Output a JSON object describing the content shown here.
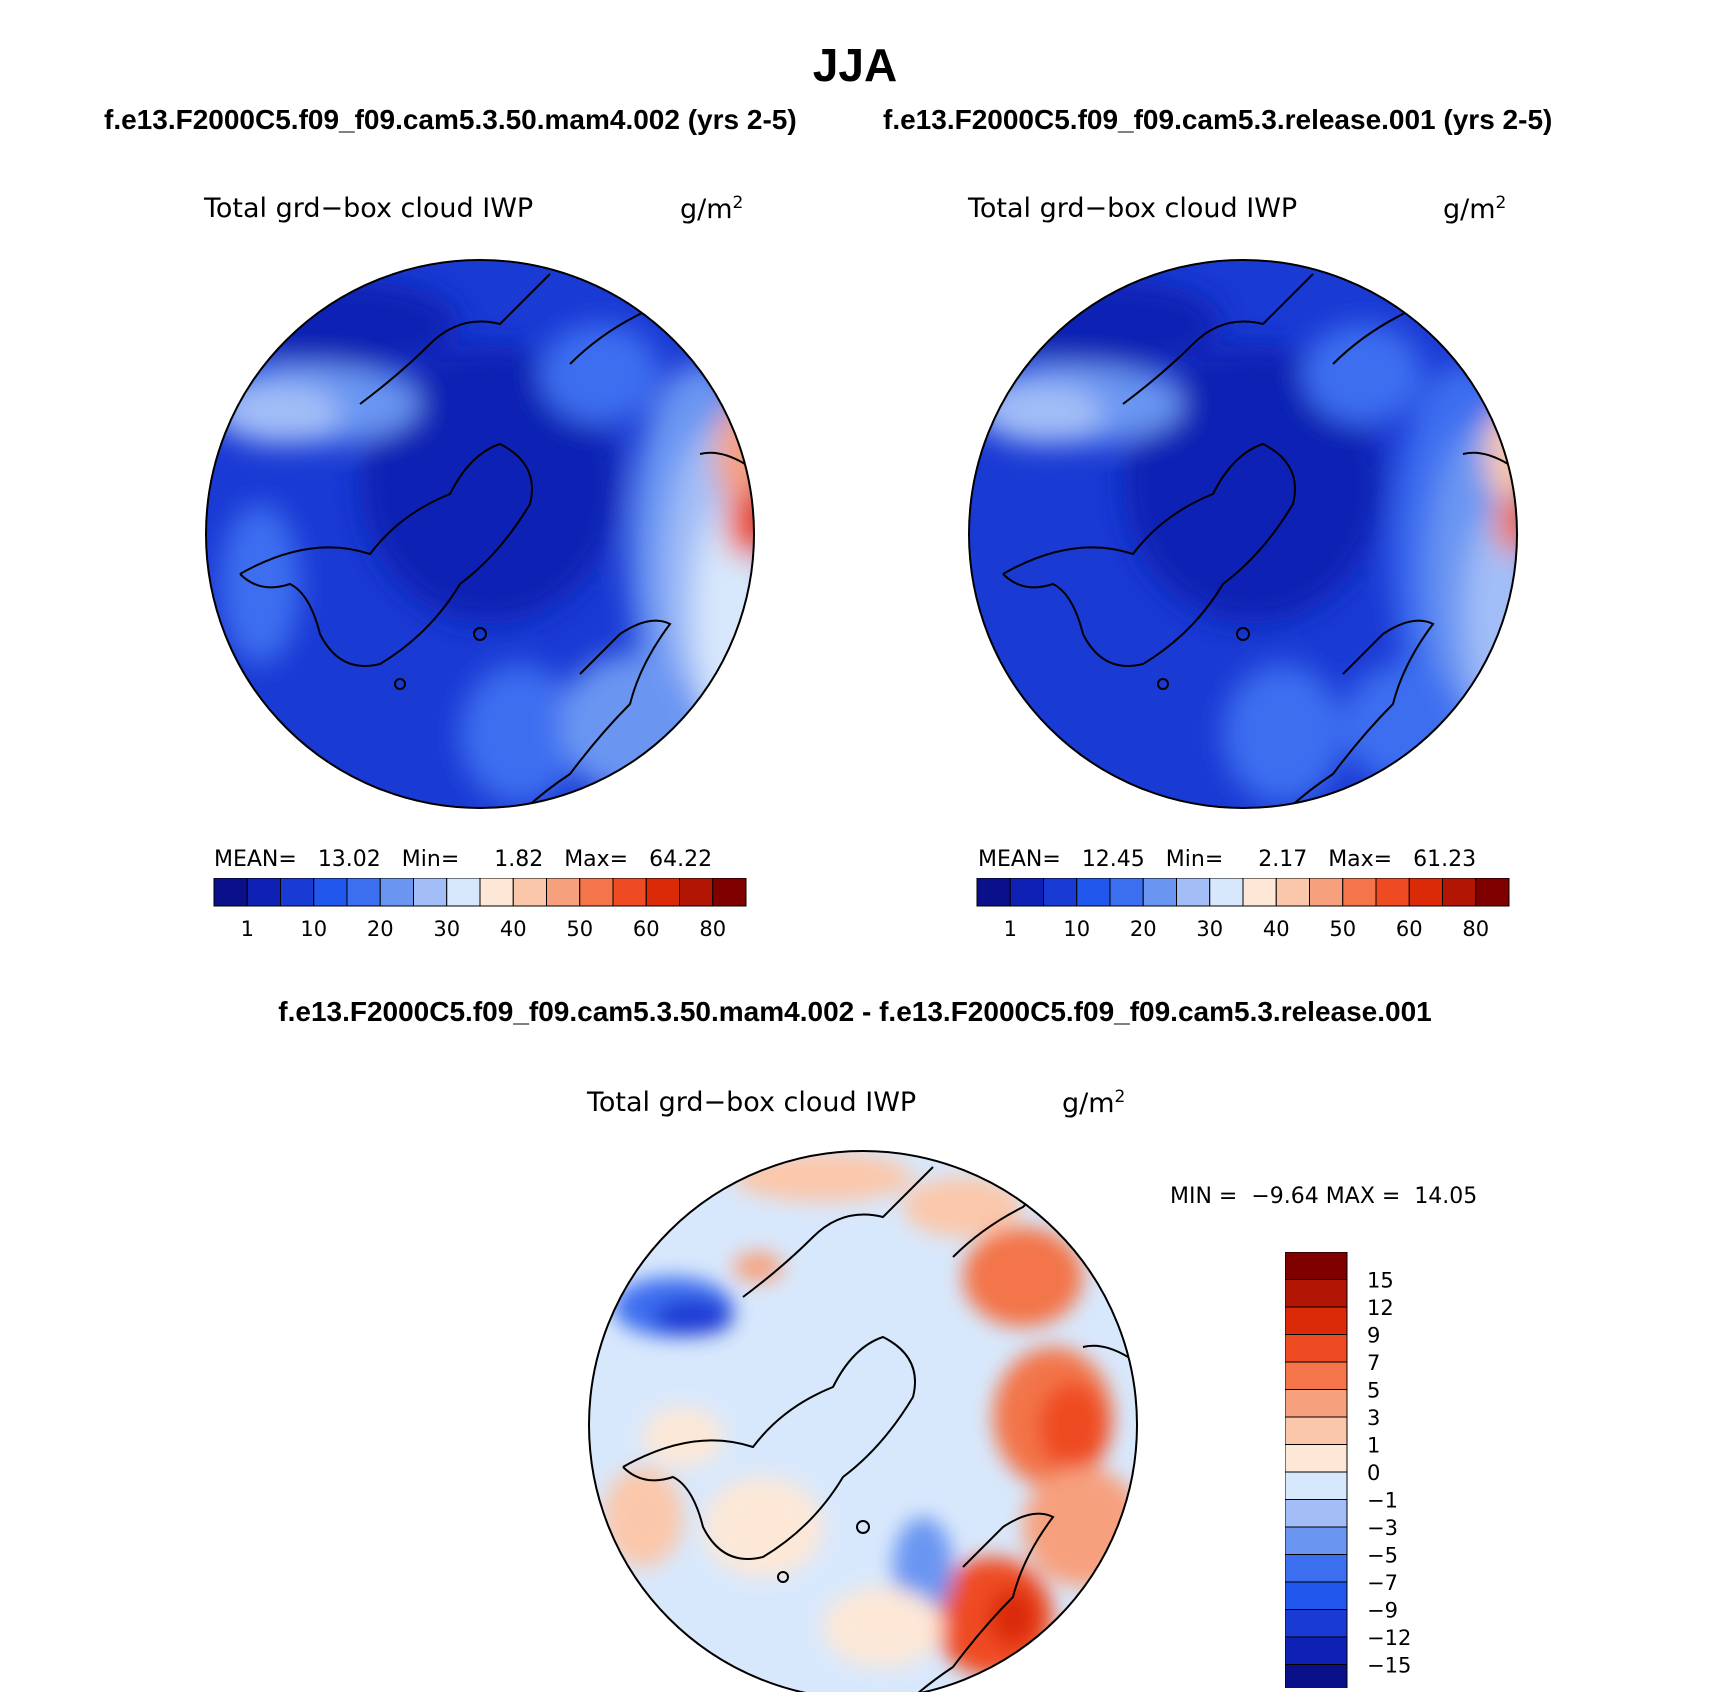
{
  "title": "JJA",
  "left_panel": {
    "case": "f.e13.F2000C5.f09_f09.cam5.3.50.mam4.002 (yrs 2-5)",
    "variable": "Total grd−box cloud IWP",
    "units": "g/m",
    "units_exp": "2",
    "stats": {
      "mean_label": "MEAN=",
      "mean": "13.02",
      "min_label": "Min=",
      "min": "1.82",
      "max_label": "Max=",
      "max": "64.22"
    }
  },
  "right_panel": {
    "case": "f.e13.F2000C5.f09_f09.cam5.3.release.001 (yrs 2-5)",
    "variable": "Total grd−box cloud IWP",
    "units": "g/m",
    "units_exp": "2",
    "stats": {
      "mean_label": "MEAN=",
      "mean": "12.45",
      "min_label": "Min=",
      "min": "2.17",
      "max_label": "Max=",
      "max": "61.23"
    }
  },
  "diff_panel": {
    "title": "f.e13.F2000C5.f09_f09.cam5.3.50.mam4.002 - f.e13.F2000C5.f09_f09.cam5.3.release.001",
    "variable": "Total grd−box cloud IWP",
    "units": "g/m",
    "units_exp": "2",
    "stats": {
      "min_label": "MIN =",
      "min": "−9.64",
      "max_label": "MAX =",
      "max": "14.05"
    }
  },
  "abs_colorbar": {
    "colors": [
      "#0a0f8a",
      "#0f21b4",
      "#1a3ad4",
      "#2257ee",
      "#3c6ef0",
      "#6a96f2",
      "#a3bef7",
      "#d8e8fc",
      "#fde8d7",
      "#fbc7aa",
      "#f7a07e",
      "#f37549",
      "#ef4b22",
      "#db2a08",
      "#b21504",
      "#800000"
    ],
    "labels": [
      "1",
      "10",
      "20",
      "30",
      "40",
      "50",
      "60",
      "80"
    ]
  },
  "diff_colorbar": {
    "colors": [
      "#800000",
      "#b21504",
      "#db2a08",
      "#ef4b22",
      "#f37549",
      "#f7a07e",
      "#fbc7aa",
      "#fde8d7",
      "#d8e8fc",
      "#a3bef7",
      "#6a96f2",
      "#3c6ef0",
      "#2257ee",
      "#1a3ad4",
      "#0f21b4",
      "#0a0f8a"
    ],
    "labels": [
      "15",
      "12",
      "9",
      "7",
      "5",
      "3",
      "1",
      "0",
      "−1",
      "−3",
      "−5",
      "−7",
      "−9",
      "−12",
      "−15"
    ]
  }
}
